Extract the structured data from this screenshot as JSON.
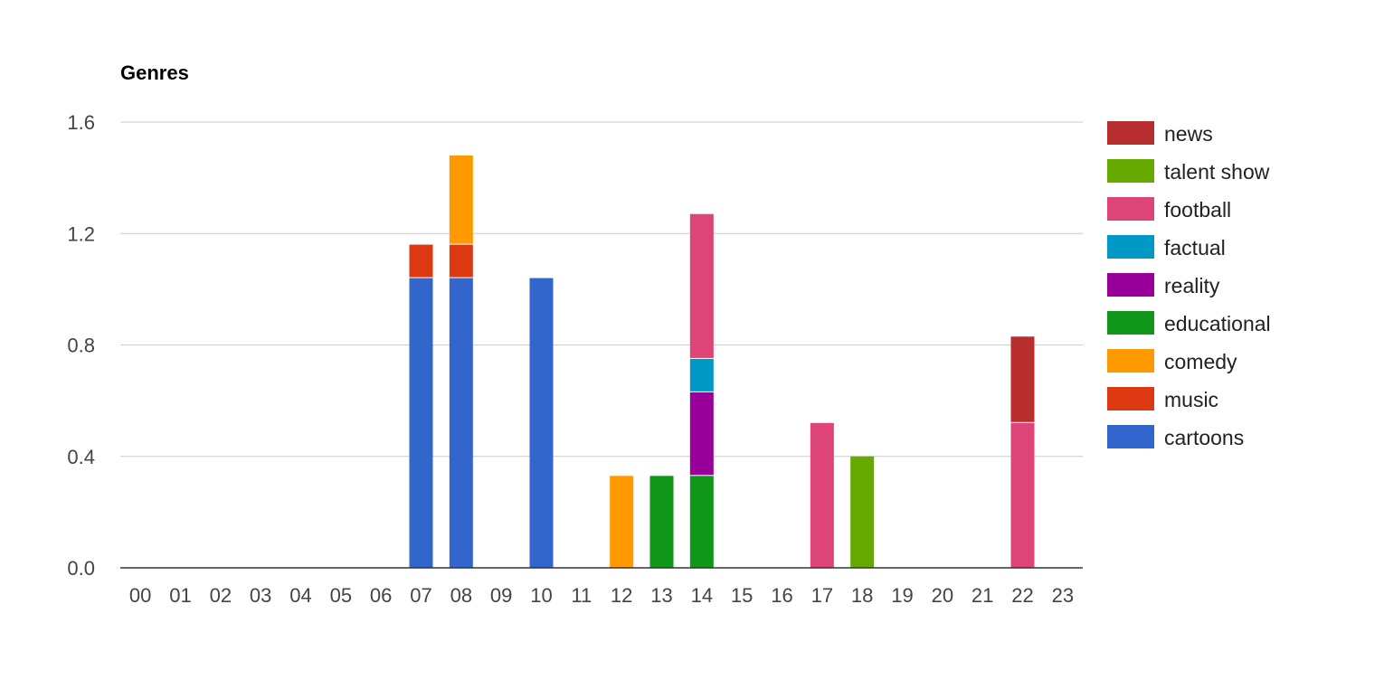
{
  "chart_data": {
    "type": "bar",
    "stacked": true,
    "title": "Genres",
    "xlabel": "",
    "ylabel": "",
    "ylim": [
      0,
      1.6
    ],
    "yticks": [
      "0.0",
      "0.4",
      "0.8",
      "1.2",
      "1.6"
    ],
    "ytick_values": [
      0,
      0.4,
      0.8,
      1.2,
      1.6
    ],
    "grid": true,
    "legend_position": "right",
    "categories": [
      "00",
      "01",
      "02",
      "03",
      "04",
      "05",
      "06",
      "07",
      "08",
      "09",
      "10",
      "11",
      "12",
      "13",
      "14",
      "15",
      "16",
      "17",
      "18",
      "19",
      "20",
      "21",
      "22",
      "23"
    ],
    "series": [
      {
        "name": "cartoons",
        "color": "#3366cc",
        "values": [
          0,
          0,
          0,
          0,
          0,
          0,
          0,
          1.04,
          1.04,
          0,
          1.04,
          0,
          0,
          0,
          0,
          0,
          0,
          0,
          0,
          0,
          0,
          0,
          0,
          0
        ]
      },
      {
        "name": "music",
        "color": "#dc3912",
        "values": [
          0,
          0,
          0,
          0,
          0,
          0,
          0,
          0.12,
          0.12,
          0,
          0,
          0,
          0,
          0,
          0,
          0,
          0,
          0,
          0,
          0,
          0,
          0,
          0,
          0
        ]
      },
      {
        "name": "comedy",
        "color": "#ff9900",
        "values": [
          0,
          0,
          0,
          0,
          0,
          0,
          0,
          0,
          0.32,
          0,
          0,
          0,
          0.33,
          0,
          0,
          0,
          0,
          0,
          0,
          0,
          0,
          0,
          0,
          0
        ]
      },
      {
        "name": "educational",
        "color": "#109618",
        "values": [
          0,
          0,
          0,
          0,
          0,
          0,
          0,
          0,
          0,
          0,
          0,
          0,
          0,
          0.33,
          0.33,
          0,
          0,
          0,
          0,
          0,
          0,
          0,
          0,
          0
        ]
      },
      {
        "name": "reality",
        "color": "#990099",
        "values": [
          0,
          0,
          0,
          0,
          0,
          0,
          0,
          0,
          0,
          0,
          0,
          0,
          0,
          0,
          0.3,
          0,
          0,
          0,
          0,
          0,
          0,
          0,
          0,
          0
        ]
      },
      {
        "name": "factual",
        "color": "#0099c6",
        "values": [
          0,
          0,
          0,
          0,
          0,
          0,
          0,
          0,
          0,
          0,
          0,
          0,
          0,
          0,
          0.12,
          0,
          0,
          0,
          0,
          0,
          0,
          0,
          0,
          0
        ]
      },
      {
        "name": "football",
        "color": "#dd4477",
        "values": [
          0,
          0,
          0,
          0,
          0,
          0,
          0,
          0,
          0,
          0,
          0,
          0,
          0,
          0,
          0.52,
          0,
          0,
          0.52,
          0,
          0,
          0,
          0,
          0.52,
          0
        ]
      },
      {
        "name": "talent show",
        "color": "#66aa00",
        "values": [
          0,
          0,
          0,
          0,
          0,
          0,
          0,
          0,
          0,
          0,
          0,
          0,
          0,
          0,
          0,
          0,
          0,
          0,
          0.4,
          0,
          0,
          0,
          0,
          0
        ]
      },
      {
        "name": "news",
        "color": "#b82e2e",
        "values": [
          0,
          0,
          0,
          0,
          0,
          0,
          0,
          0,
          0,
          0,
          0,
          0,
          0,
          0,
          0,
          0,
          0,
          0,
          0,
          0,
          0,
          0,
          0.31,
          0
        ]
      }
    ],
    "legend_order": [
      "news",
      "talent show",
      "football",
      "factual",
      "reality",
      "educational",
      "comedy",
      "music",
      "cartoons"
    ]
  }
}
